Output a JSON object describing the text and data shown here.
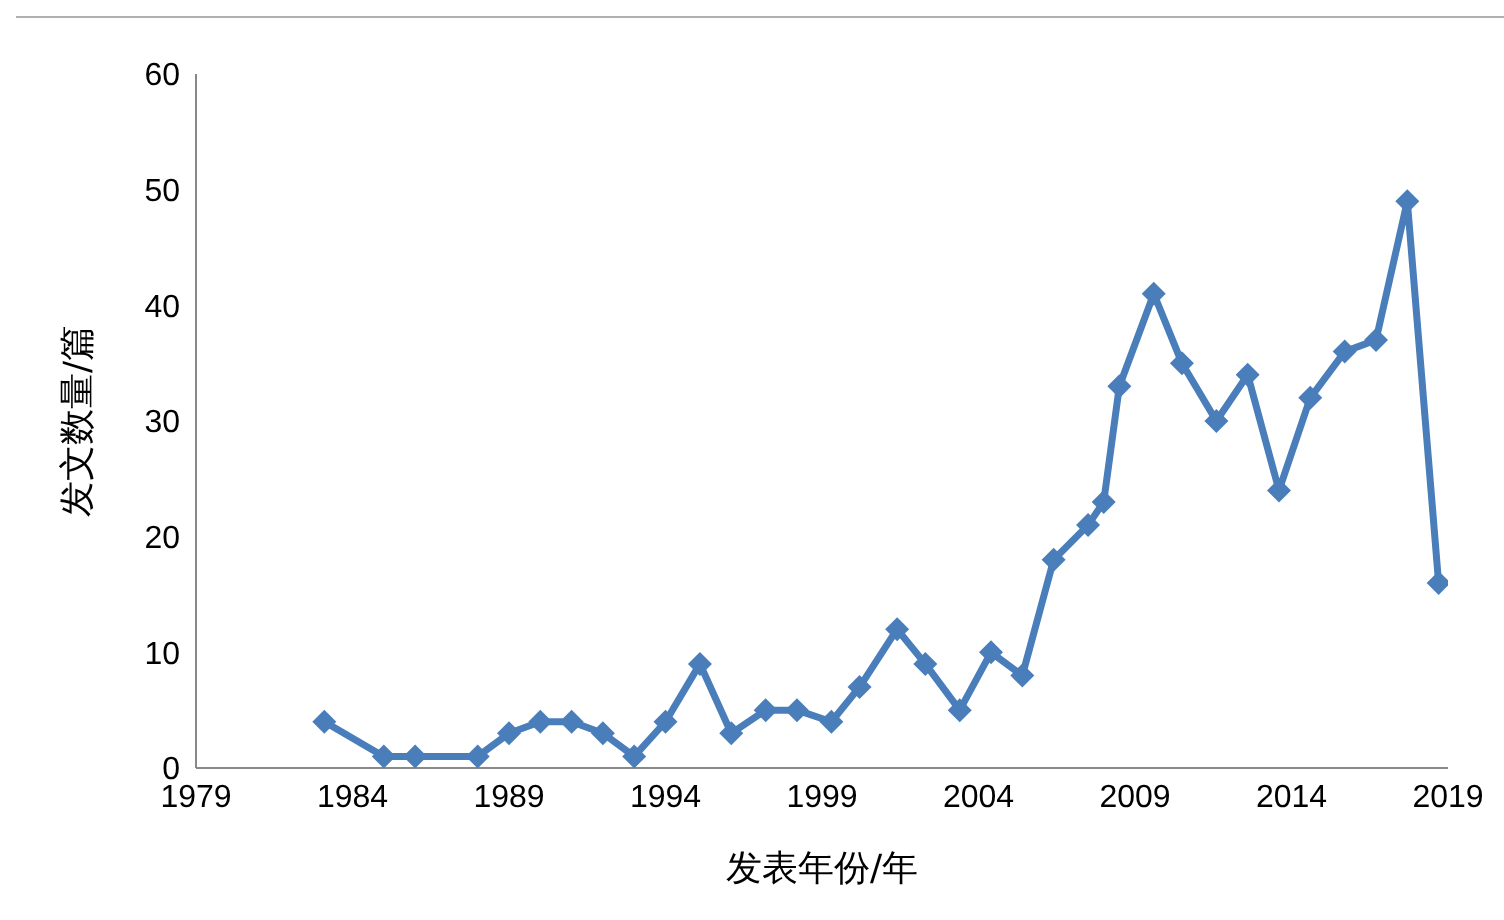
{
  "chart_data": {
    "type": "line",
    "xlabel": "发表年份/年",
    "ylabel": "发文数量/篇",
    "x": [
      1983.1,
      1985.0,
      1986.0,
      1988.0,
      1989.0,
      1990.0,
      1991.0,
      1992.0,
      1993.0,
      1994.0,
      1995.1,
      1996.1,
      1997.2,
      1998.2,
      1999.3,
      2000.2,
      2001.4,
      2002.3,
      2003.4,
      2004.4,
      2005.4,
      2006.4,
      2007.5,
      2008.0,
      2008.5,
      2009.6,
      2010.5,
      2011.6,
      2012.6,
      2013.6,
      2014.6,
      2015.7,
      2016.7,
      2017.7,
      2018.7
    ],
    "series": [
      {
        "color": "#4a7ebb",
        "values": [
          4,
          1,
          1,
          1,
          3,
          4,
          4,
          3,
          1,
          4,
          9,
          3,
          5,
          5,
          4,
          7,
          12,
          9,
          5,
          10,
          8,
          18,
          21,
          23,
          33,
          41,
          35,
          30,
          34,
          24,
          32,
          36,
          37,
          49,
          16
        ]
      }
    ],
    "xlim": [
      1979,
      2019
    ],
    "xticks": [
      1979,
      1984,
      1989,
      1994,
      1999,
      2004,
      2009,
      2014,
      2019
    ],
    "ylim": [
      0,
      60
    ],
    "yticks": [
      0,
      10,
      20,
      30,
      40,
      50,
      60
    ],
    "grid": false,
    "legend": false,
    "marker": "diamond",
    "line_style": "solid"
  }
}
